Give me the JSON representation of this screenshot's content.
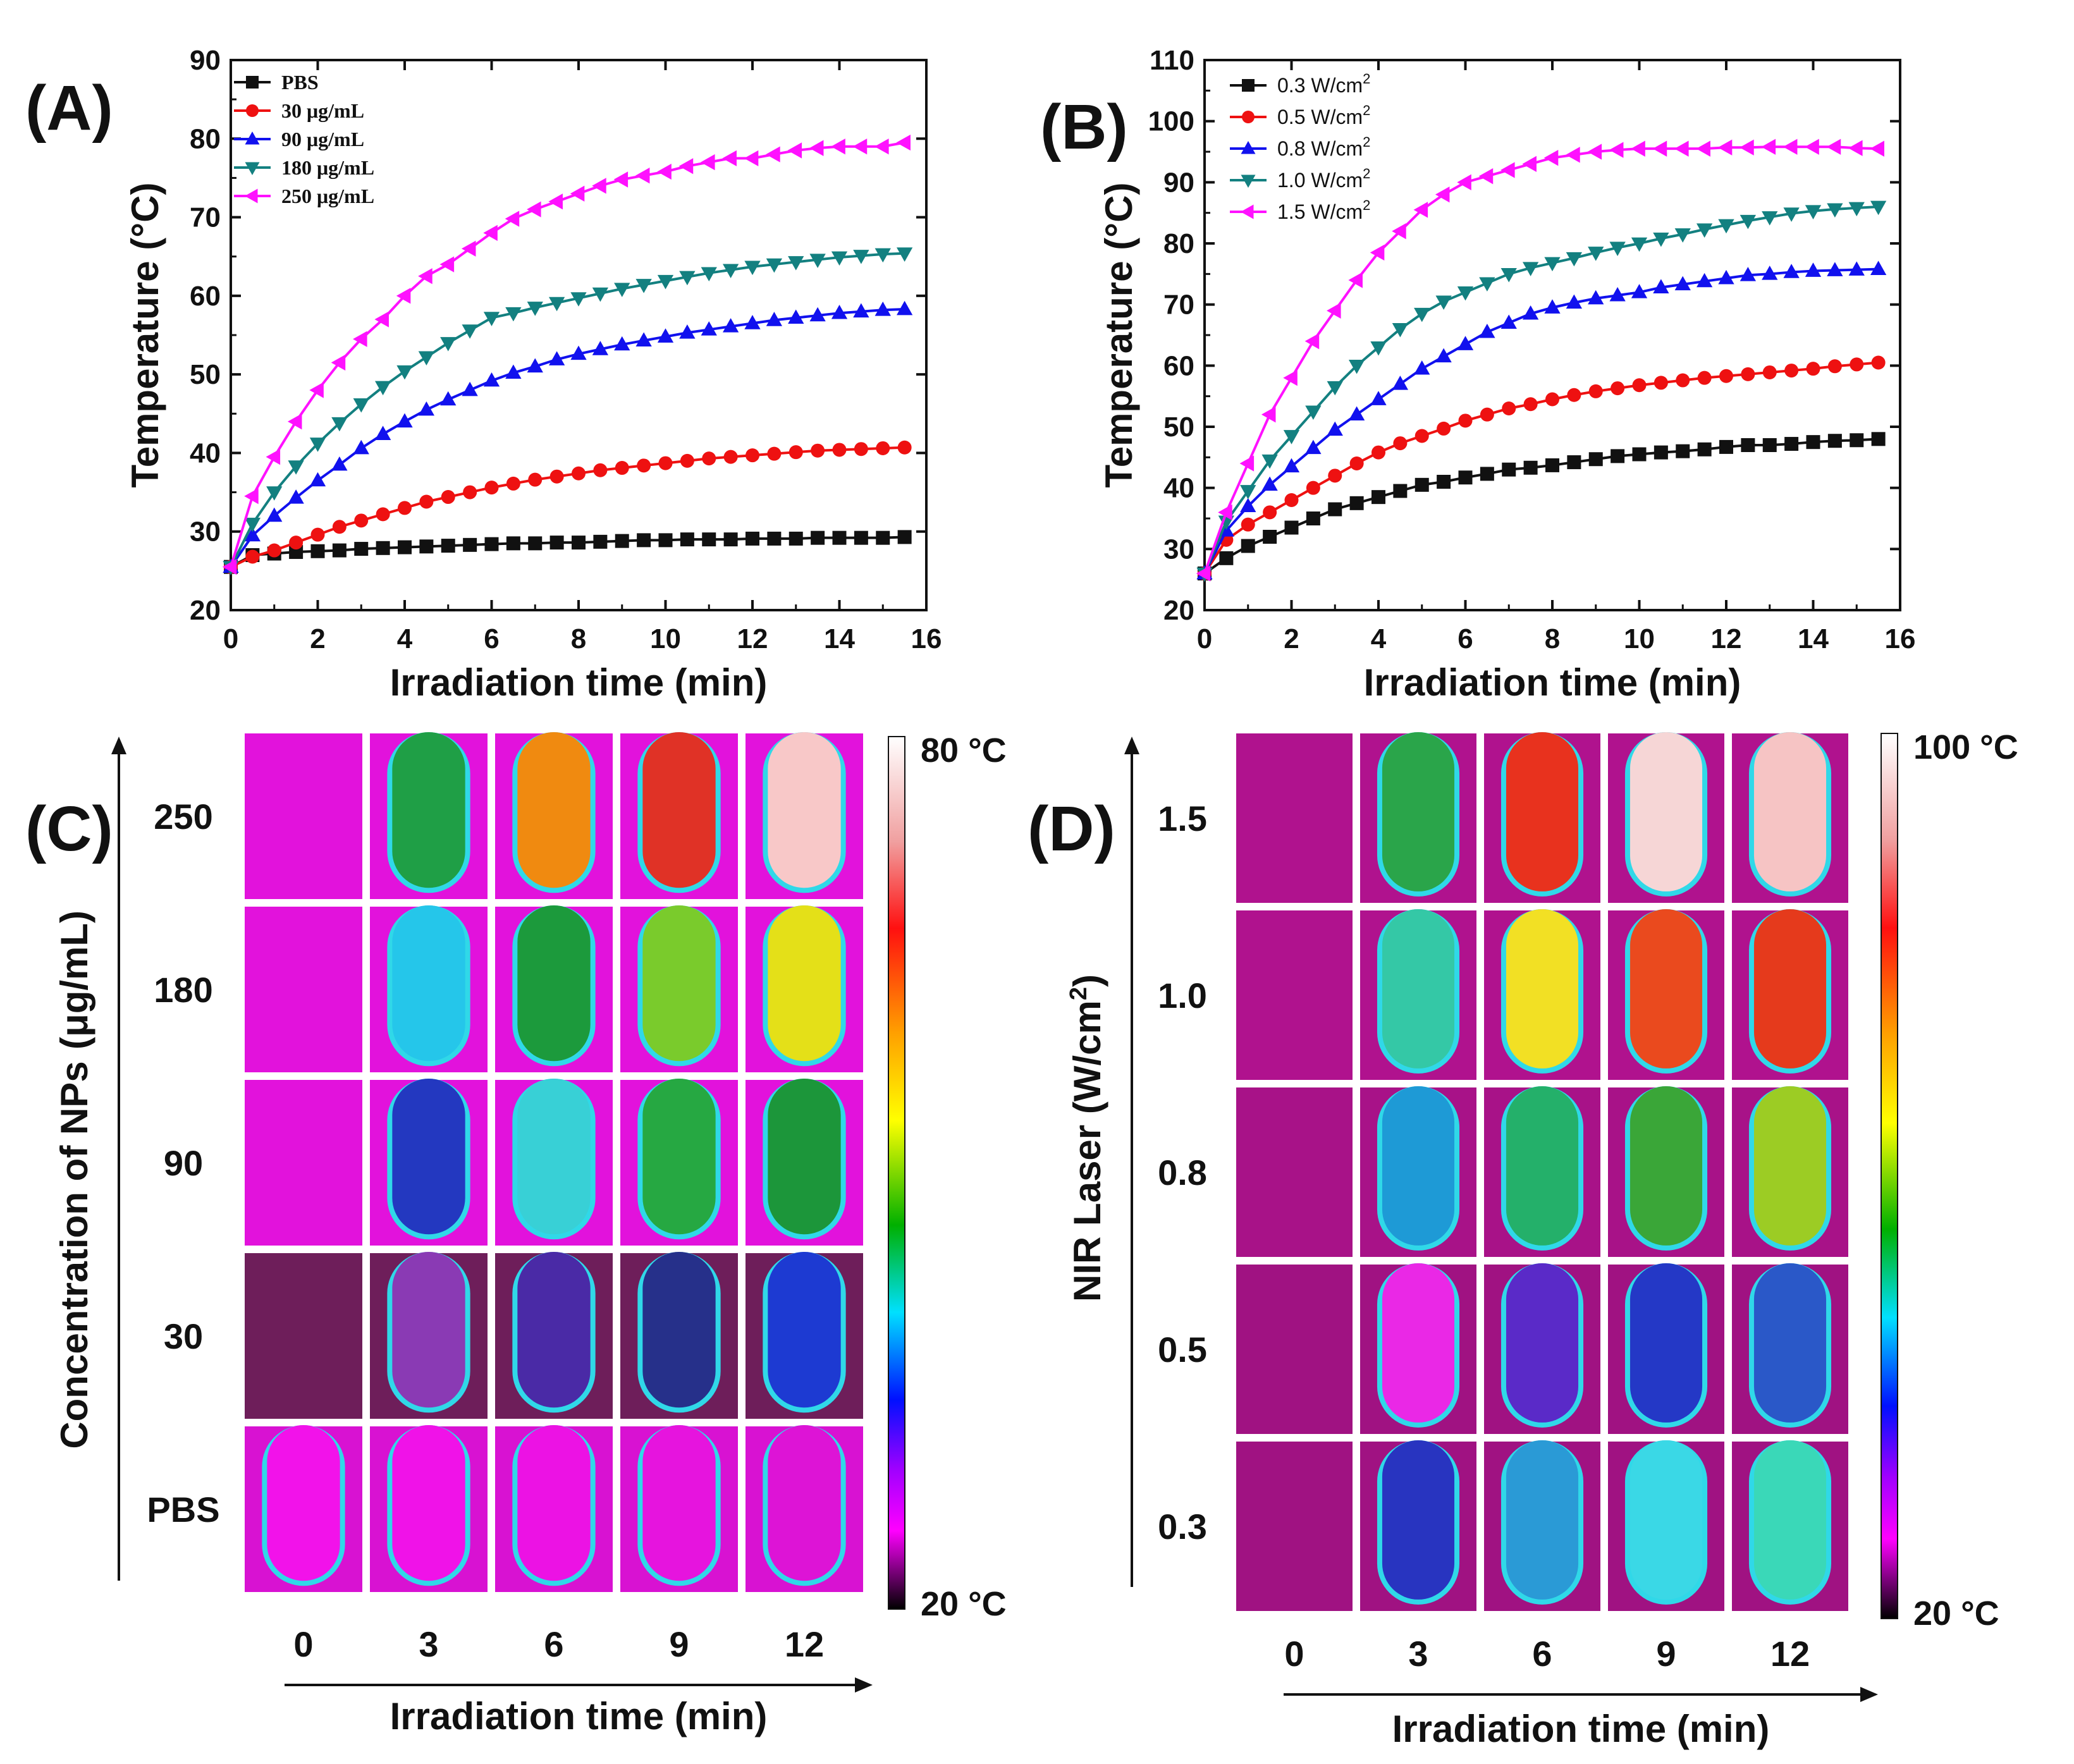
{
  "chart_data": [
    {
      "panel": "(A)",
      "type": "line",
      "xlabel": "Irradiation time (min)",
      "ylabel": "Temperature (°C)",
      "xlim": [
        0,
        16
      ],
      "ylim": [
        20,
        90
      ],
      "xticks": [
        0,
        2,
        4,
        6,
        8,
        10,
        12,
        14,
        16
      ],
      "yticks": [
        20,
        30,
        40,
        50,
        60,
        70,
        80,
        90
      ],
      "legend_position": "top-left",
      "x": [
        0,
        0.5,
        1,
        1.5,
        2,
        2.5,
        3,
        3.5,
        4,
        4.5,
        5,
        5.5,
        6,
        6.5,
        7,
        7.5,
        8,
        8.5,
        9,
        9.5,
        10,
        10.5,
        11,
        11.5,
        12,
        12.5,
        13,
        13.5,
        14,
        14.5,
        15,
        15.5
      ],
      "series": [
        {
          "name": "PBS",
          "color": "#111111",
          "marker": "square",
          "values": [
            25.5,
            27.0,
            27.2,
            27.4,
            27.5,
            27.6,
            27.8,
            27.9,
            28.0,
            28.1,
            28.2,
            28.3,
            28.4,
            28.5,
            28.5,
            28.6,
            28.6,
            28.7,
            28.8,
            28.9,
            28.9,
            29.0,
            29.0,
            29.0,
            29.1,
            29.1,
            29.1,
            29.2,
            29.2,
            29.2,
            29.2,
            29.3
          ]
        },
        {
          "name": "30 μg/mL",
          "color": "#ee1111",
          "marker": "circle",
          "values": [
            25.5,
            26.8,
            27.6,
            28.6,
            29.6,
            30.6,
            31.4,
            32.2,
            33.0,
            33.8,
            34.4,
            35.0,
            35.6,
            36.1,
            36.6,
            37.0,
            37.4,
            37.8,
            38.1,
            38.4,
            38.7,
            39.0,
            39.3,
            39.5,
            39.7,
            39.9,
            40.1,
            40.3,
            40.4,
            40.5,
            40.6,
            40.7
          ]
        },
        {
          "name": "90 μg/mL",
          "color": "#1111ee",
          "marker": "triangle-up",
          "values": [
            25.5,
            29.5,
            32.0,
            34.3,
            36.5,
            38.5,
            40.6,
            42.4,
            44.0,
            45.5,
            46.8,
            48.0,
            49.2,
            50.2,
            51.0,
            51.9,
            52.6,
            53.2,
            53.8,
            54.3,
            54.8,
            55.3,
            55.7,
            56.1,
            56.5,
            56.9,
            57.2,
            57.5,
            57.8,
            58.0,
            58.2,
            58.3
          ]
        },
        {
          "name": "180 μg/mL",
          "color": "#138080",
          "marker": "triangle-down",
          "values": [
            25.5,
            31.0,
            35.0,
            38.3,
            41.2,
            43.8,
            46.2,
            48.4,
            50.4,
            52.2,
            54.0,
            55.6,
            57.2,
            57.8,
            58.5,
            59.1,
            59.7,
            60.3,
            60.9,
            61.4,
            61.9,
            62.4,
            62.9,
            63.3,
            63.7,
            64.0,
            64.3,
            64.6,
            64.9,
            65.1,
            65.3,
            65.4
          ]
        },
        {
          "name": "250 μg/mL",
          "color": "#ff11ff",
          "marker": "triangle-left",
          "values": [
            25.5,
            34.5,
            39.5,
            44.0,
            48.0,
            51.5,
            54.5,
            57.0,
            60.0,
            62.5,
            64.0,
            66.0,
            68.0,
            69.8,
            71.0,
            72.0,
            73.0,
            74.0,
            74.8,
            75.3,
            75.8,
            76.5,
            77.0,
            77.5,
            77.5,
            78.0,
            78.5,
            78.8,
            79.0,
            79.0,
            79.0,
            79.5
          ]
        }
      ]
    },
    {
      "panel": "(B)",
      "type": "line",
      "xlabel": "Irradiation time (min)",
      "ylabel": "Temperature (°C)",
      "xlim": [
        0,
        16
      ],
      "ylim": [
        20,
        110
      ],
      "xticks": [
        0,
        2,
        4,
        6,
        8,
        10,
        12,
        14,
        16
      ],
      "yticks": [
        20,
        30,
        40,
        50,
        60,
        70,
        80,
        90,
        100,
        110
      ],
      "legend_position": "top-left",
      "x": [
        0,
        0.5,
        1,
        1.5,
        2,
        2.5,
        3,
        3.5,
        4,
        4.5,
        5,
        5.5,
        6,
        6.5,
        7,
        7.5,
        8,
        8.5,
        9,
        9.5,
        10,
        10.5,
        11,
        11.5,
        12,
        12.5,
        13,
        13.5,
        14,
        14.5,
        15,
        15.5
      ],
      "series": [
        {
          "name": "0.3 W/cm2",
          "label_main": "0.3 W/cm",
          "label_sup": "2",
          "color": "#111111",
          "marker": "square",
          "values": [
            26.0,
            28.5,
            30.5,
            32.0,
            33.5,
            35.0,
            36.5,
            37.5,
            38.5,
            39.5,
            40.5,
            41.0,
            41.7,
            42.3,
            43.0,
            43.3,
            43.7,
            44.2,
            44.7,
            45.2,
            45.5,
            45.8,
            46.0,
            46.3,
            46.7,
            47.0,
            47.0,
            47.2,
            47.5,
            47.7,
            47.8,
            48.0
          ]
        },
        {
          "name": "0.5 W/cm2",
          "label_main": "0.5 W/cm",
          "label_sup": "2",
          "color": "#ee1111",
          "marker": "circle",
          "values": [
            26.0,
            31.5,
            34.0,
            36.0,
            38.0,
            40.0,
            42.0,
            44.0,
            45.8,
            47.3,
            48.5,
            49.7,
            51.0,
            52.0,
            53.0,
            53.7,
            54.5,
            55.2,
            55.8,
            56.3,
            56.8,
            57.2,
            57.6,
            58.0,
            58.3,
            58.6,
            58.9,
            59.2,
            59.5,
            59.9,
            60.2,
            60.5
          ]
        },
        {
          "name": "0.8 W/cm2",
          "label_main": "0.8 W/cm",
          "label_sup": "2",
          "color": "#1111ee",
          "marker": "triangle-up",
          "values": [
            26.0,
            33.0,
            37.0,
            40.5,
            43.5,
            46.5,
            49.5,
            52.0,
            54.5,
            57.0,
            59.5,
            61.5,
            63.5,
            65.5,
            67.0,
            68.5,
            69.5,
            70.3,
            71.0,
            71.5,
            72.0,
            72.8,
            73.3,
            73.8,
            74.3,
            74.8,
            75.0,
            75.3,
            75.5,
            75.6,
            75.7,
            75.8
          ]
        },
        {
          "name": "1.0 W/cm2",
          "label_main": "1.0 W/cm",
          "label_sup": "2",
          "color": "#138080",
          "marker": "triangle-down",
          "values": [
            26.0,
            34.5,
            39.5,
            44.5,
            48.5,
            52.5,
            56.5,
            60.0,
            63.0,
            66.0,
            68.5,
            70.5,
            72.0,
            73.5,
            75.0,
            76.0,
            76.8,
            77.6,
            78.5,
            79.3,
            80.0,
            80.8,
            81.5,
            82.3,
            83.0,
            83.7,
            84.3,
            84.9,
            85.3,
            85.6,
            85.8,
            86.0
          ]
        },
        {
          "name": "1.5 W/cm2",
          "label_main": "1.5 W/cm",
          "label_sup": "2",
          "color": "#ff11ff",
          "marker": "triangle-left",
          "values": [
            26.0,
            36.0,
            44.0,
            52.0,
            58.0,
            64.0,
            69.0,
            74.0,
            78.5,
            82.0,
            85.5,
            88.0,
            90.0,
            91.0,
            92.0,
            93.0,
            94.0,
            94.5,
            95.0,
            95.3,
            95.5,
            95.5,
            95.5,
            95.5,
            95.7,
            95.7,
            95.8,
            95.8,
            95.8,
            95.8,
            95.6,
            95.5
          ]
        }
      ]
    }
  ],
  "panel_c": {
    "label": "(C)",
    "y_title": "Concentration of NPs",
    "y_unit": "(μg/mL)",
    "x_title": "Irradiation time (min)",
    "rows": [
      "250",
      "180",
      "90",
      "30",
      "PBS"
    ],
    "cols": [
      "0",
      "3",
      "6",
      "9",
      "12"
    ],
    "colorbar_max": "80 °C",
    "colorbar_min": "20 °C",
    "background_colors": [
      "#e212dc",
      "#e212dc",
      "#e212dc",
      "#6e1e5a",
      "#d812d2"
    ],
    "tube_colors": [
      [
        null,
        "#1f9f46",
        "#f08a10",
        "#e03226",
        "#f8c8c8"
      ],
      [
        null,
        "#25c6ea",
        "#1c9a3c",
        "#7acb2c",
        "#e4e018"
      ],
      [
        null,
        "#2338c0",
        "#38d0d6",
        "#26a842",
        "#1c963a"
      ],
      [
        null,
        "#8a3ab4",
        "#4a2aa6",
        "#26308a",
        "#1d3ad2"
      ],
      [
        "#f212ea",
        "#f012e8",
        "#ec12e4",
        "#e614de",
        "#dd14d6"
      ]
    ]
  },
  "panel_d": {
    "label": "(D)",
    "y_title": "NIR Laser (W/cm",
    "y_title_sup": "2",
    "y_title_end": ")",
    "x_title": "Irradiation time (min)",
    "rows": [
      "1.5",
      "1.0",
      "0.8",
      "0.5",
      "0.3"
    ],
    "cols": [
      "0",
      "3",
      "6",
      "9",
      "12"
    ],
    "colorbar_max": "100 °C",
    "colorbar_min": "20 °C",
    "background_colors": [
      "#b0128e",
      "#b0128e",
      "#a81288",
      "#a01282",
      "#a01282"
    ],
    "tube_colors": [
      [
        null,
        "#2aa54a",
        "#e8321e",
        "#f6d6d6",
        "#f6c4c4"
      ],
      [
        null,
        "#34c8a6",
        "#f2e024",
        "#ea4a1e",
        "#e53a1c"
      ],
      [
        null,
        "#1e9ad6",
        "#24b06a",
        "#3aa638",
        "#9ccc24"
      ],
      [
        null,
        "#ea28e6",
        "#5a2ac8",
        "#2438c6",
        "#2a58c8"
      ],
      [
        null,
        "#2834c0",
        "#2a9ad6",
        "#3ad8e6",
        "#3ad8b8"
      ]
    ]
  }
}
